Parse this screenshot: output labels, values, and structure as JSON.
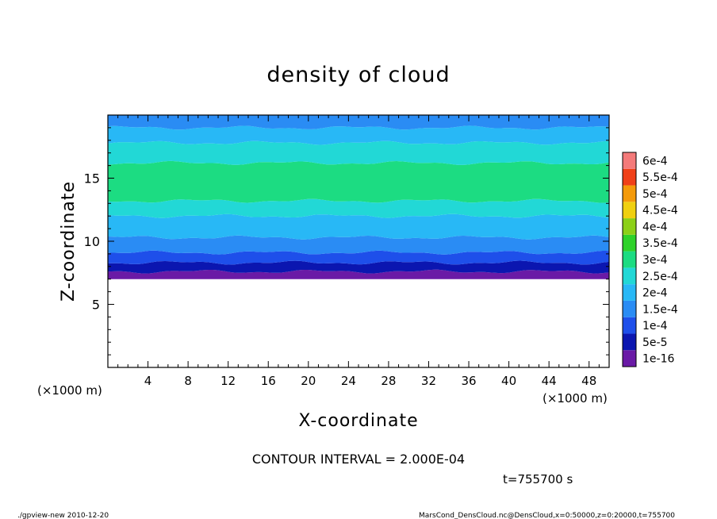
{
  "chart_data": {
    "type": "heatmap",
    "title": "density of cloud",
    "xlabel": "X-coordinate",
    "ylabel": "Z-coordinate",
    "x_unit_left": "(×1000 m)",
    "x_unit_right": "(×1000 m)",
    "xlim": [
      0,
      50
    ],
    "ylim": [
      0,
      20
    ],
    "x_ticks": [
      4,
      8,
      12,
      16,
      20,
      24,
      28,
      32,
      36,
      40,
      44,
      48
    ],
    "y_ticks": [
      5,
      10,
      15
    ],
    "cloud_base_z": 7.0,
    "cloud_top_z": 20.0,
    "layers": [
      {
        "z0": 7.0,
        "z1": 7.6,
        "level_index": 0
      },
      {
        "z0": 7.6,
        "z1": 8.3,
        "level_index": 1
      },
      {
        "z0": 8.3,
        "z1": 9.1,
        "level_index": 2
      },
      {
        "z0": 9.1,
        "z1": 10.3,
        "level_index": 3
      },
      {
        "z0": 10.3,
        "z1": 12.0,
        "level_index": 4
      },
      {
        "z0": 12.0,
        "z1": 13.2,
        "level_index": 5
      },
      {
        "z0": 13.2,
        "z1": 16.2,
        "level_index": 6
      },
      {
        "z0": 16.2,
        "z1": 17.8,
        "level_index": 5
      },
      {
        "z0": 17.8,
        "z1": 19.0,
        "level_index": 4
      },
      {
        "z0": 19.0,
        "z1": 20.0,
        "level_index": 3
      }
    ],
    "colorbar": {
      "labels": [
        "1e-16",
        "5e-5",
        "1e-4",
        "1.5e-4",
        "2e-4",
        "2.5e-4",
        "3e-4",
        "3.5e-4",
        "4e-4",
        "4.5e-4",
        "5e-4",
        "5.5e-4",
        "6e-4"
      ],
      "colors": [
        "#6a1aa6",
        "#0b16b0",
        "#1e4fea",
        "#2a8cf4",
        "#28b8f6",
        "#22d8d6",
        "#1cdc82",
        "#2ed22a",
        "#8cd018",
        "#f0d010",
        "#f49a0a",
        "#f04018",
        "#f47a7a"
      ]
    },
    "contour_interval_text": "CONTOUR INTERVAL = 2.000E-04",
    "time_text": "t=755700 s"
  },
  "footer": {
    "left": "./gpview-new   2010-12-20",
    "right": "MarsCond_DensCloud.nc@DensCloud,x=0:50000,z=0:20000,t=755700"
  }
}
